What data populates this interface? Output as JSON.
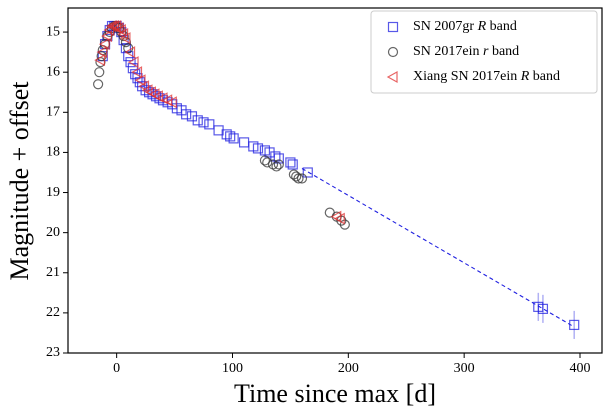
{
  "chart_data": {
    "type": "scatter",
    "xlabel": "Time since max [d]",
    "ylabel": "Magnitude + offset",
    "xlim": [
      -42,
      419
    ],
    "ylim": [
      23,
      14.4
    ],
    "xticks": [
      0,
      100,
      200,
      300,
      400
    ],
    "yticks": [
      15,
      16,
      17,
      18,
      19,
      20,
      21,
      22,
      23
    ],
    "legend": "upper right",
    "series": [
      {
        "name": "SN 2007gr R band",
        "color": "#2020e0",
        "marker": "square",
        "x": [
          -12,
          -10,
          -8,
          -6,
          -4,
          -2,
          0,
          2,
          4,
          6,
          8,
          10,
          12,
          14,
          16,
          18,
          20,
          22,
          25,
          28,
          31,
          34,
          37,
          40,
          44,
          48,
          52,
          56,
          60,
          65,
          70,
          75,
          80,
          88,
          95,
          98,
          101,
          110,
          118,
          122,
          128,
          132,
          137,
          140,
          150,
          152,
          165,
          364,
          368,
          395
        ],
        "values": [
          15.6,
          15.3,
          15.1,
          14.95,
          14.85,
          14.85,
          14.85,
          14.9,
          15.0,
          15.2,
          15.4,
          15.6,
          15.75,
          15.9,
          16.05,
          16.15,
          16.25,
          16.35,
          16.45,
          16.5,
          16.55,
          16.6,
          16.65,
          16.7,
          16.75,
          16.8,
          16.9,
          16.95,
          17.05,
          17.1,
          17.2,
          17.25,
          17.3,
          17.45,
          17.55,
          17.6,
          17.65,
          17.75,
          17.85,
          17.9,
          17.95,
          18.0,
          18.1,
          18.15,
          18.25,
          18.3,
          18.5,
          21.85,
          21.9,
          22.3
        ],
        "errors": [
          null,
          null,
          null,
          null,
          null,
          null,
          null,
          null,
          null,
          null,
          null,
          null,
          null,
          null,
          null,
          null,
          null,
          null,
          null,
          null,
          null,
          null,
          null,
          null,
          null,
          null,
          null,
          null,
          null,
          null,
          null,
          null,
          null,
          null,
          null,
          null,
          null,
          null,
          null,
          null,
          null,
          null,
          null,
          null,
          null,
          null,
          null,
          0.35,
          0.35,
          0.35
        ]
      },
      {
        "name": "SN 2017ein r band",
        "color": "#333333",
        "marker": "circle",
        "x": [
          -16,
          -15,
          -14,
          -13,
          -12,
          -10,
          -8,
          -6,
          -4,
          -2,
          0,
          2,
          4,
          6,
          8,
          10,
          128,
          130,
          135,
          138,
          140,
          153,
          155,
          157,
          160,
          184,
          190,
          194,
          197
        ],
        "values": [
          16.3,
          16.0,
          15.75,
          15.6,
          15.45,
          15.3,
          15.1,
          15.0,
          14.9,
          14.85,
          14.85,
          14.9,
          15.0,
          15.1,
          15.25,
          15.4,
          18.2,
          18.25,
          18.3,
          18.35,
          18.3,
          18.55,
          18.6,
          18.65,
          18.65,
          19.5,
          19.6,
          19.7,
          19.8
        ]
      },
      {
        "name": "Xiang SN 2017ein R band",
        "color": "#e03030",
        "marker": "triangle-left",
        "x": [
          -14,
          -12,
          -10,
          -8,
          -6,
          -4,
          -2,
          0,
          2,
          4,
          6,
          8,
          12,
          15,
          18,
          21,
          24,
          27,
          30,
          33,
          36,
          40,
          44,
          48,
          190,
          193
        ],
        "values": [
          15.7,
          15.5,
          15.3,
          15.1,
          14.95,
          14.85,
          14.85,
          14.85,
          14.9,
          14.95,
          15.05,
          15.15,
          15.5,
          15.75,
          16.0,
          16.2,
          16.35,
          16.45,
          16.5,
          16.55,
          16.6,
          16.65,
          16.7,
          16.75,
          19.6,
          19.65
        ]
      }
    ],
    "fit": {
      "color": "#2020e0",
      "x": [
        160,
        395
      ],
      "values": [
        18.4,
        22.35
      ]
    }
  }
}
